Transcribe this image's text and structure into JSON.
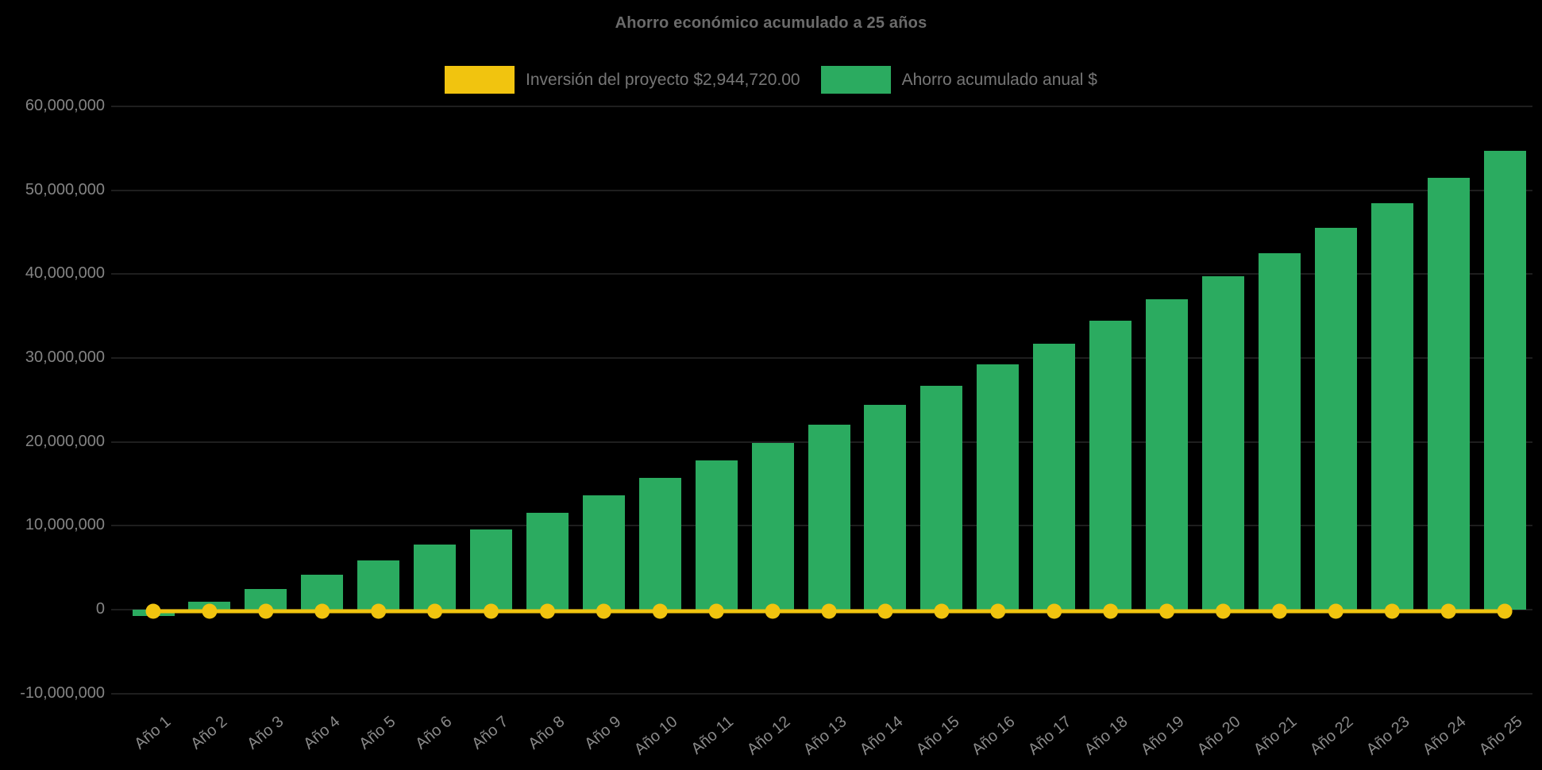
{
  "title": "Ahorro económico acumulado a 25 años",
  "legend": [
    {
      "id": "investment",
      "label": "Inversión del proyecto $2,944,720.00",
      "color": "#F1C40F"
    },
    {
      "id": "savings",
      "label": "Ahorro acumulado anual $",
      "color": "#2BAB60"
    }
  ],
  "chart_data": {
    "type": "bar",
    "title": "Ahorro económico acumulado a 25 años",
    "background": "#000000",
    "categories": [
      "Año 1",
      "Año 2",
      "Año 3",
      "Año 4",
      "Año 5",
      "Año 6",
      "Año 7",
      "Año 8",
      "Año 9",
      "Año 10",
      "Año 11",
      "Año 12",
      "Año 13",
      "Año 14",
      "Año 15",
      "Año 16",
      "Año 17",
      "Año 18",
      "Año 19",
      "Año 20",
      "Año 21",
      "Año 22",
      "Año 23",
      "Año 24",
      "Año 25"
    ],
    "series": [
      {
        "name": "Ahorro acumulado anual $",
        "type": "bar",
        "color": "#2BAB60",
        "values": [
          -800000,
          900000,
          2500000,
          4200000,
          5900000,
          7800000,
          9600000,
          11500000,
          13600000,
          15700000,
          17800000,
          19900000,
          22000000,
          24400000,
          26700000,
          29200000,
          31700000,
          34400000,
          37000000,
          39700000,
          42500000,
          45500000,
          48400000,
          51500000,
          54700000
        ]
      },
      {
        "name": "Inversión del proyecto $2,944,720.00",
        "type": "line",
        "color": "#F1C40F",
        "value": 2944720,
        "plotted_at_value": 0,
        "marker": "circle"
      }
    ],
    "xlabel": "",
    "ylabel": "",
    "ylim": [
      -10000000,
      65000000
    ],
    "yticks": [
      60000000,
      50000000,
      40000000,
      30000000,
      20000000,
      10000000,
      0,
      -10000000
    ],
    "ytick_labels": [
      "60,000,000",
      "50,000,000",
      "40,000,000",
      "30,000,000",
      "20,000,000",
      "10,000,000",
      "0",
      "-10,000,000"
    ],
    "grid": "horizontal-faint",
    "legend_position": "top-center",
    "xtick_rotation_deg": -40
  }
}
